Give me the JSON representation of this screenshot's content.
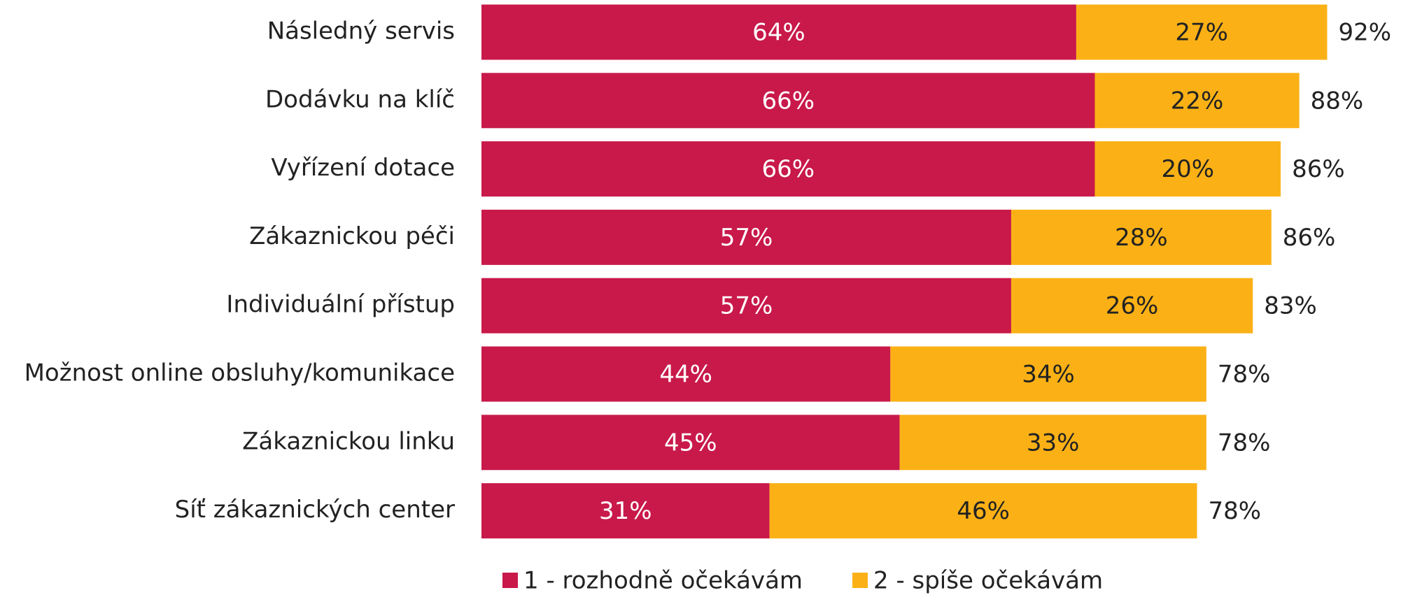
{
  "chart_data": {
    "type": "stacked-bar-horizontal",
    "categories": [
      "Následný servis",
      "Dodávku na klíč",
      "Vyřízení dotace",
      "Zákaznickou péči",
      "Individuální přístup",
      "Možnost online obsluhy/komunikace",
      "Zákaznickou linku",
      "Síť zákaznických center"
    ],
    "series": [
      {
        "name": "1 - rozhodně očekávám",
        "color": "#c8194a",
        "values": [
          64,
          66,
          66,
          57,
          57,
          44,
          45,
          31
        ],
        "value_labels": [
          "64%",
          "66%",
          "66%",
          "57%",
          "57%",
          "44%",
          "45%",
          "31%"
        ]
      },
      {
        "name": "2 - spíše očekávám",
        "color": "#fbb116",
        "values": [
          27,
          22,
          20,
          28,
          26,
          34,
          33,
          46
        ],
        "value_labels": [
          "27%",
          "22%",
          "20%",
          "28%",
          "26%",
          "34%",
          "33%",
          "46%"
        ]
      }
    ],
    "totals": [
      92,
      88,
      86,
      86,
      83,
      78,
      78,
      78
    ],
    "total_labels": [
      "92%",
      "88%",
      "86%",
      "86%",
      "83%",
      "78%",
      "78%",
      "78%"
    ],
    "legend": "bottom"
  }
}
